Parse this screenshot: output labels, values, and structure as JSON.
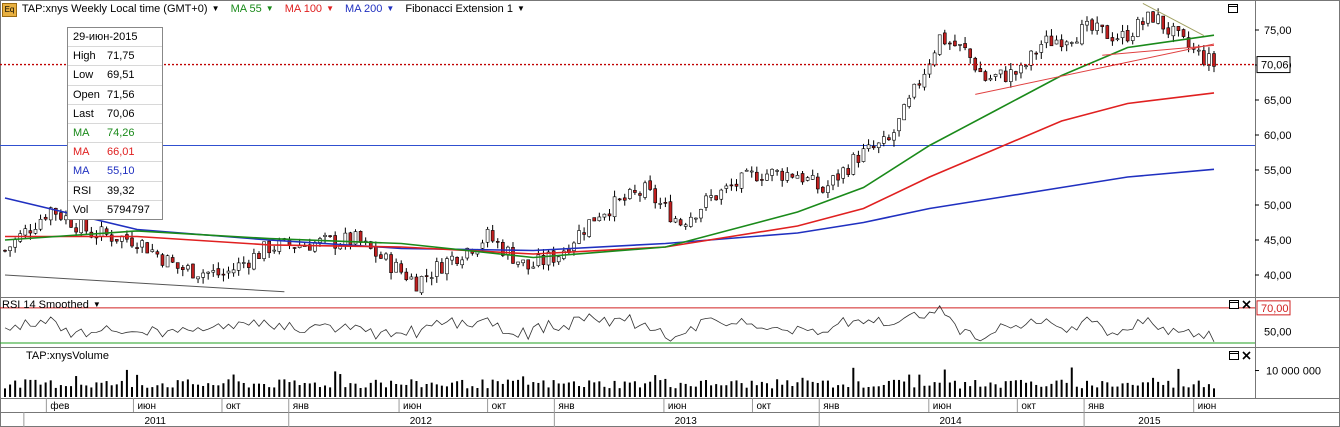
{
  "header": {
    "symbol_label": "TAP:xnys Weekly Local time (GMT+0)",
    "badge": "Eq",
    "ma55_label": "MA 55",
    "ma100_label": "MA 100",
    "ma200_label": "MA 200",
    "fib_label": "Fibonacci Extension 1"
  },
  "info_box": [
    {
      "key": "29-июн-2015",
      "value": "",
      "color": "#000000"
    },
    {
      "key": "High",
      "value": "71,75",
      "color": "#000000"
    },
    {
      "key": "Low",
      "value": "69,51",
      "color": "#000000"
    },
    {
      "key": "Open",
      "value": "71,56",
      "color": "#000000"
    },
    {
      "key": "Last",
      "value": "70,06",
      "color": "#000000"
    },
    {
      "key": "MA",
      "value": "74,26",
      "color": "#1a8a1a"
    },
    {
      "key": "MA",
      "value": "66,01",
      "color": "#e02020"
    },
    {
      "key": "MA",
      "value": "55,10",
      "color": "#2030c0"
    },
    {
      "key": "RSI",
      "value": "39,32",
      "color": "#000000"
    },
    {
      "key": "Vol",
      "value": "5794797",
      "color": "#000000"
    }
  ],
  "rsi_panel_title": "RSI 14 Smoothed",
  "volume_panel_title": "TAP:xnysVolume",
  "colors": {
    "ma55": "#1a8a1a",
    "ma100": "#e02020",
    "ma200": "#2030c0",
    "up_candle": "#ffffff",
    "down_candle": "#c02020",
    "last_price_line": "#c00000"
  },
  "chart_data": [
    {
      "type": "candlestick",
      "title": "TAP:xnys Weekly",
      "x_range": [
        "2010-12",
        "2015-07"
      ],
      "ylim": [
        37,
        79
      ],
      "y_ticks": [
        "40,00",
        "45,00",
        "50,00",
        "55,00",
        "60,00",
        "65,00",
        "70,00",
        "75,00"
      ],
      "y_tick_values": [
        40,
        45,
        50,
        55,
        60,
        65,
        70,
        75
      ],
      "last_price_label": "70,06",
      "last_price": 70.06,
      "horizontal_line_value": 58.5,
      "price_path": [
        [
          "2010-12-06",
          43.5
        ],
        [
          "2011-02-07",
          49.5
        ],
        [
          "2011-04-04",
          46
        ],
        [
          "2011-06-06",
          45
        ],
        [
          "2011-08-01",
          41
        ],
        [
          "2011-10-03",
          40
        ],
        [
          "2011-12-05",
          44
        ],
        [
          "2012-01-30",
          44.5
        ],
        [
          "2012-04-02",
          45
        ],
        [
          "2012-05-28",
          41
        ],
        [
          "2012-06-25",
          39
        ],
        [
          "2012-08-06",
          42
        ],
        [
          "2012-10-01",
          45.5
        ],
        [
          "2012-11-26",
          41
        ],
        [
          "2013-01-07",
          43
        ],
        [
          "2013-03-04",
          49
        ],
        [
          "2013-05-06",
          52
        ],
        [
          "2013-06-24",
          47.5
        ],
        [
          "2013-08-05",
          51
        ],
        [
          "2013-10-07",
          54.5
        ],
        [
          "2013-12-02",
          54.5
        ],
        [
          "2014-01-06",
          52
        ],
        [
          "2014-02-24",
          57
        ],
        [
          "2014-04-07",
          59
        ],
        [
          "2014-05-05",
          64.5
        ],
        [
          "2014-06-16",
          74
        ],
        [
          "2014-07-21",
          72
        ],
        [
          "2014-08-18",
          68
        ],
        [
          "2014-10-06",
          69
        ],
        [
          "2014-11-03",
          73
        ],
        [
          "2015-01-05",
          75
        ],
        [
          "2015-02-23",
          74
        ],
        [
          "2015-04-06",
          77
        ],
        [
          "2015-05-18",
          73
        ],
        [
          "2015-06-29",
          70.06
        ]
      ],
      "ma55": [
        [
          "2010-12-06",
          45
        ],
        [
          "2011-06-06",
          46.3
        ],
        [
          "2011-12-05",
          45.2
        ],
        [
          "2012-06-04",
          44.5
        ],
        [
          "2012-12-03",
          42.5
        ],
        [
          "2013-06-03",
          44
        ],
        [
          "2013-12-02",
          49
        ],
        [
          "2014-03-03",
          52.5
        ],
        [
          "2014-06-02",
          58.5
        ],
        [
          "2014-09-01",
          63.5
        ],
        [
          "2014-12-01",
          68.5
        ],
        [
          "2015-03-02",
          72.5
        ],
        [
          "2015-06-29",
          74.26
        ]
      ],
      "ma100": [
        [
          "2010-12-06",
          45.5
        ],
        [
          "2011-06-06",
          45.5
        ],
        [
          "2011-12-05",
          44.3
        ],
        [
          "2012-06-04",
          44
        ],
        [
          "2012-12-03",
          43
        ],
        [
          "2013-06-03",
          44
        ],
        [
          "2013-12-02",
          47
        ],
        [
          "2014-03-03",
          49.5
        ],
        [
          "2014-06-02",
          54
        ],
        [
          "2014-09-01",
          58
        ],
        [
          "2014-12-01",
          62
        ],
        [
          "2015-03-02",
          64.5
        ],
        [
          "2015-06-29",
          66.01
        ]
      ],
      "ma200": [
        [
          "2010-12-06",
          51
        ],
        [
          "2011-06-06",
          46.5
        ],
        [
          "2011-12-05",
          45
        ],
        [
          "2012-06-04",
          43.8
        ],
        [
          "2012-12-03",
          43.5
        ],
        [
          "2013-06-03",
          44.5
        ],
        [
          "2013-12-02",
          46
        ],
        [
          "2014-03-03",
          47.5
        ],
        [
          "2014-06-02",
          49.5
        ],
        [
          "2014-09-01",
          51
        ],
        [
          "2014-12-01",
          52.5
        ],
        [
          "2015-03-02",
          54
        ],
        [
          "2015-06-29",
          55.1
        ]
      ]
    },
    {
      "type": "line",
      "title": "RSI 14 Smoothed",
      "ylim": [
        40,
        75
      ],
      "y_ticks": [
        "50,00"
      ],
      "y_tick_values": [
        50
      ],
      "level_label": "70,00",
      "upper_level": 70,
      "lower_level": 30,
      "last_value": 39.32
    },
    {
      "type": "bar",
      "title": "TAP:xnysVolume",
      "ylim": [
        0,
        17000000
      ],
      "y_ticks": [
        "10 000 000"
      ],
      "y_tick_values": [
        10000000
      ]
    }
  ],
  "time_axis": {
    "months": [
      {
        "label": "фев",
        "date": "2011-02-01"
      },
      {
        "label": "июн",
        "date": "2011-06-01"
      },
      {
        "label": "окт",
        "date": "2011-10-01"
      },
      {
        "label": "янв",
        "date": "2012-01-01"
      },
      {
        "label": "июн",
        "date": "2012-06-01"
      },
      {
        "label": "окт",
        "date": "2012-10-01"
      },
      {
        "label": "янв",
        "date": "2013-01-01"
      },
      {
        "label": "июн",
        "date": "2013-06-01"
      },
      {
        "label": "окт",
        "date": "2013-10-01"
      },
      {
        "label": "янв",
        "date": "2014-01-01"
      },
      {
        "label": "июн",
        "date": "2014-06-01"
      },
      {
        "label": "окт",
        "date": "2014-10-01"
      },
      {
        "label": "янв",
        "date": "2015-01-01"
      },
      {
        "label": "июн",
        "date": "2015-06-01"
      }
    ],
    "years": [
      {
        "label": "2011",
        "date": "2011-07-01"
      },
      {
        "label": "2012",
        "date": "2012-07-01"
      },
      {
        "label": "2013",
        "date": "2013-07-01"
      },
      {
        "label": "2014",
        "date": "2014-07-01"
      },
      {
        "label": "2015",
        "date": "2015-04-01"
      }
    ]
  }
}
